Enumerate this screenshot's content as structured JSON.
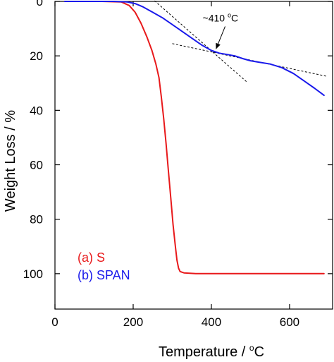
{
  "chart_data": {
    "type": "line",
    "xlabel_main": "Temperature / ",
    "xlabel_sup": "o",
    "xlabel_unit": "C",
    "ylabel": "Weight Loss / %",
    "xlim": [
      0,
      710
    ],
    "ylim": [
      0,
      113
    ],
    "y_inverted": true,
    "x_ticks": [
      0,
      200,
      400,
      600
    ],
    "y_ticks": [
      0,
      20,
      40,
      60,
      80,
      100
    ],
    "grid": false,
    "legend_position": "bottom-left",
    "series": [
      {
        "name": "(a) S",
        "color": "#e8191b",
        "x": [
          25,
          60,
          120,
          170,
          190,
          205,
          220,
          235,
          248,
          258,
          266,
          272,
          278,
          284,
          290,
          296,
          302,
          308,
          312,
          316,
          320,
          330,
          360,
          420,
          500,
          600,
          688
        ],
        "y": [
          0,
          0,
          0,
          0.2,
          1.5,
          4,
          8,
          13,
          18,
          23,
          28,
          35,
          43,
          52,
          62,
          72,
          82,
          90,
          95,
          98,
          99.2,
          99.7,
          100,
          100,
          100,
          100,
          100
        ]
      },
      {
        "name": "(b) SPAN",
        "color": "#1a1aeb",
        "x": [
          25,
          80,
          150,
          185,
          205,
          225,
          250,
          275,
          300,
          325,
          350,
          375,
          400,
          420,
          440,
          460,
          480,
          500,
          520,
          550,
          580,
          610,
          640,
          665,
          688
        ],
        "y": [
          0,
          0,
          0,
          0.2,
          0.8,
          2,
          4,
          6,
          8.5,
          11,
          13.5,
          16,
          18,
          19,
          19.5,
          20,
          21,
          21.8,
          22.3,
          23,
          24.3,
          26.5,
          29.5,
          32,
          34.5
        ]
      }
    ],
    "annotation": {
      "text": "~410 ",
      "sup": "o",
      "unit": "C",
      "x": 410,
      "y": 18
    },
    "tangent_lines": [
      {
        "x": [
          225,
          490
        ],
        "y": [
          -4,
          29.5
        ]
      },
      {
        "x": [
          300,
          695
        ],
        "y": [
          15.5,
          27.5
        ]
      }
    ]
  }
}
